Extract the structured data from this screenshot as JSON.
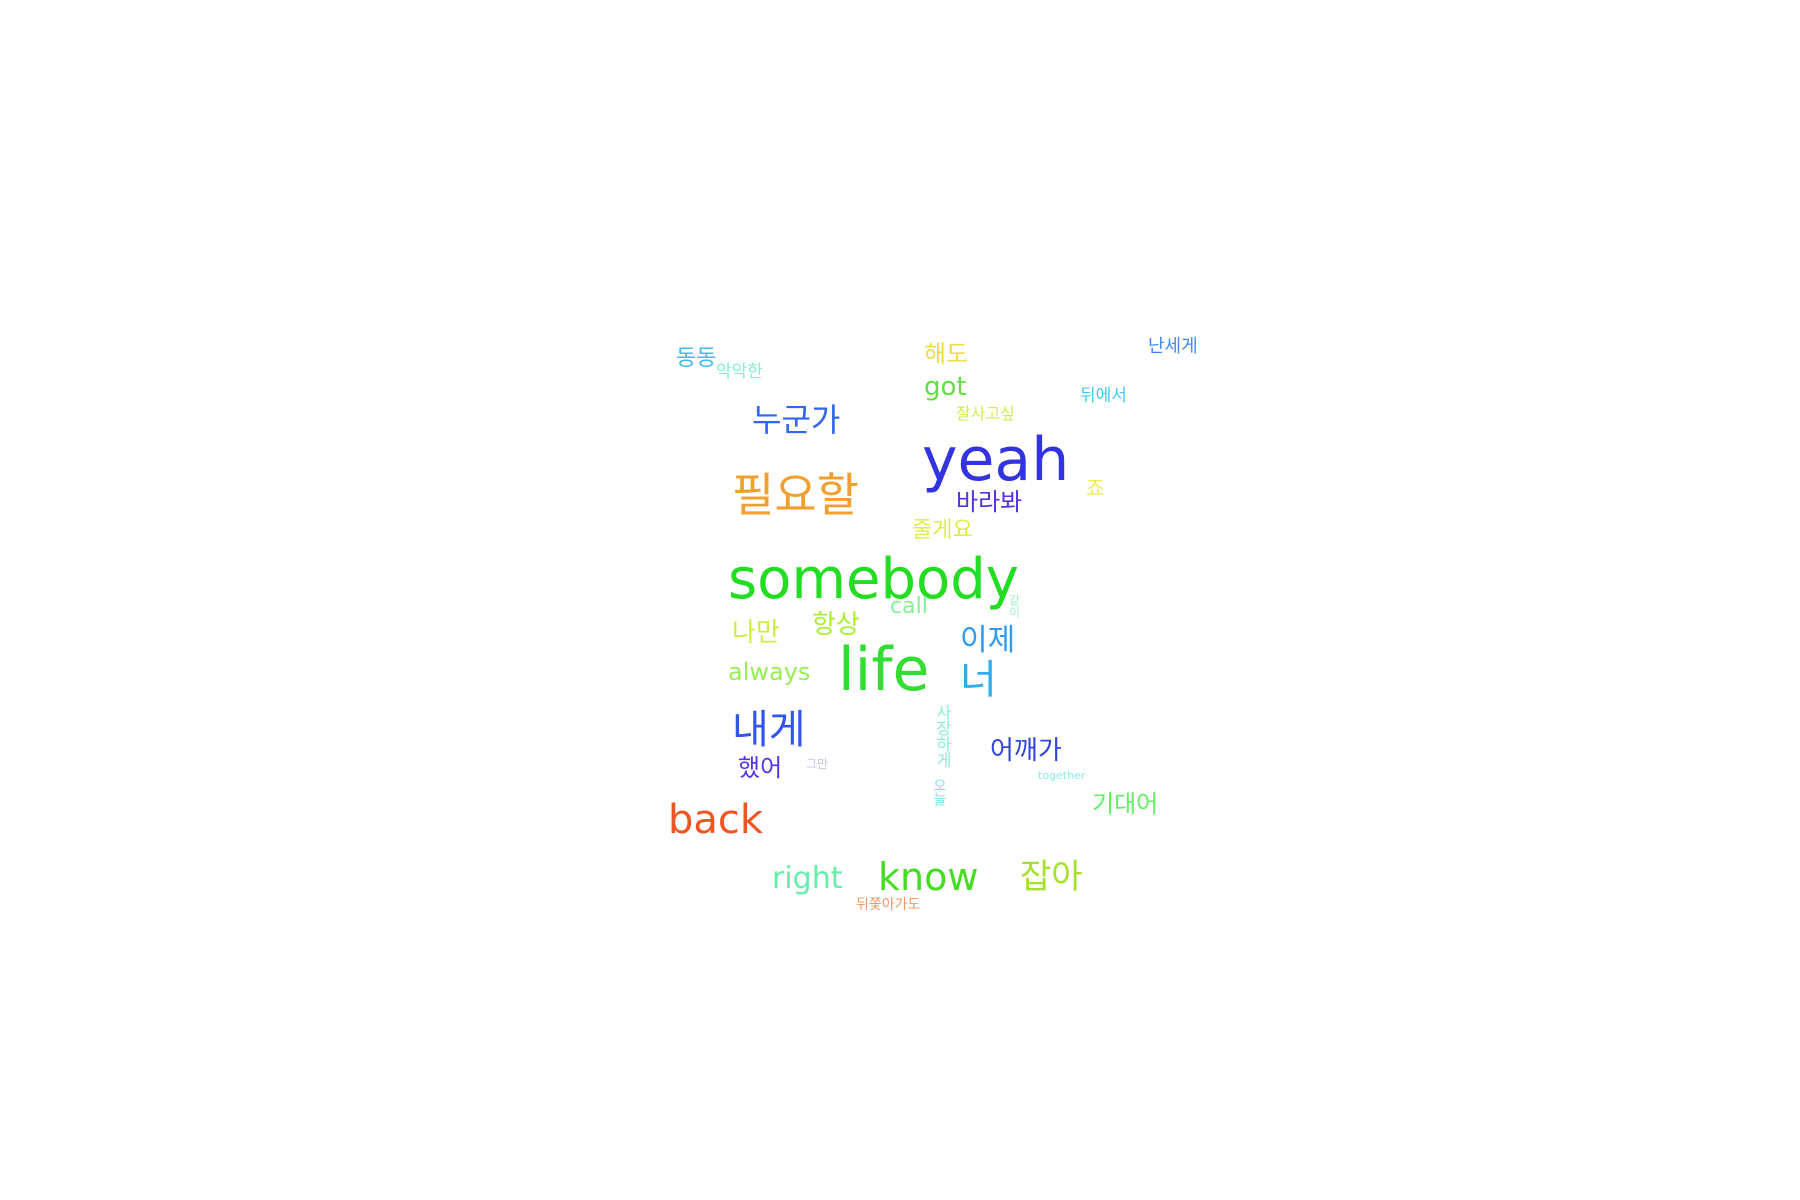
{
  "cloud": {
    "words": [
      {
        "key": "somebody",
        "text": "somebody",
        "color": "#22dd22"
      },
      {
        "key": "life",
        "text": "life",
        "color": "#33dd33"
      },
      {
        "key": "yeah",
        "text": "yeah",
        "color": "#3333e0"
      },
      {
        "key": "piryohal",
        "text": "필요할",
        "color": "#f0a030"
      },
      {
        "key": "naege",
        "text": "내게",
        "color": "#3355ee"
      },
      {
        "key": "back",
        "text": "back",
        "color": "#ee5522"
      },
      {
        "key": "know",
        "text": "know",
        "color": "#44dd22"
      },
      {
        "key": "jaba",
        "text": "잡아",
        "color": "#a8e030"
      },
      {
        "key": "right",
        "text": "right",
        "color": "#66eeaa"
      },
      {
        "key": "nugunga",
        "text": "누군가",
        "color": "#3366ee"
      },
      {
        "key": "neo",
        "text": "너",
        "color": "#33aaee"
      },
      {
        "key": "ije",
        "text": "이제",
        "color": "#3399ee"
      },
      {
        "key": "eokkaega",
        "text": "어깨가",
        "color": "#3344dd"
      },
      {
        "key": "baraba",
        "text": "바라봐",
        "color": "#5533dd"
      },
      {
        "key": "naman",
        "text": "나만",
        "color": "#ccee44"
      },
      {
        "key": "hangsang",
        "text": "항상",
        "color": "#aaee33"
      },
      {
        "key": "always",
        "text": "always",
        "color": "#99ee55"
      },
      {
        "key": "got",
        "text": "got",
        "color": "#66dd44"
      },
      {
        "key": "haedo",
        "text": "해도",
        "color": "#eedd44"
      },
      {
        "key": "call",
        "text": "call",
        "color": "#88ee99"
      },
      {
        "key": "jugeyo",
        "text": "줄게요",
        "color": "#ddee44"
      },
      {
        "key": "haesseo",
        "text": "했어",
        "color": "#5533ee"
      },
      {
        "key": "gidaeeo",
        "text": "기대어",
        "color": "#66ee66"
      },
      {
        "key": "dongdong",
        "text": "동동",
        "color": "#44bbee"
      },
      {
        "key": "aktaktan",
        "text": "악악한",
        "color": "#88eecc"
      },
      {
        "key": "nanege",
        "text": "난세게",
        "color": "#4488ee"
      },
      {
        "key": "jalsalgo",
        "text": "잘사고싶",
        "color": "#ccee55"
      },
      {
        "key": "dwieseo",
        "text": "뒤에서",
        "color": "#44ccee"
      },
      {
        "key": "jo",
        "text": "죠",
        "color": "#eeee55"
      },
      {
        "key": "sajanghaeg",
        "text": "사장하게",
        "color": "#88eecc"
      },
      {
        "key": "oneul",
        "text": "오늘",
        "color": "#88ddee"
      },
      {
        "key": "teumyeo",
        "text": "뒤쫓아가도",
        "color": "#ee9966"
      },
      {
        "key": "together",
        "text": "together",
        "color": "#88eedd"
      },
      {
        "key": "geuma",
        "text": "그만",
        "color": "#ccbbee"
      },
      {
        "key": "tail",
        "text": "같이",
        "color": "#aaeecc"
      }
    ]
  }
}
